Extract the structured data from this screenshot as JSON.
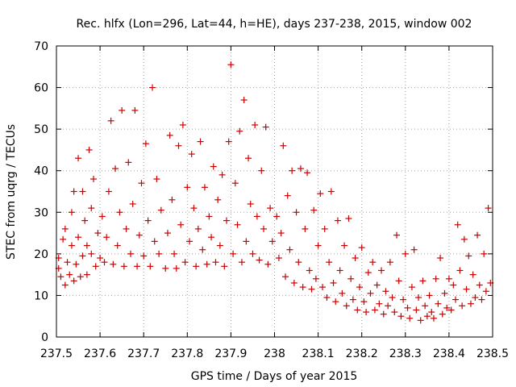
{
  "chart_data": {
    "type": "scatter",
    "title": "Rec. hlfx (Lon=296, Lat=44, h=HE), days 237-238, 2015, window 002",
    "xlabel": "GPS time / Days of year 2015",
    "ylabel": "STEC from uqrg / TECUs",
    "xlim": [
      237.5,
      238.5
    ],
    "ylim": [
      0,
      70
    ],
    "xticks": [
      237.5,
      237.6,
      237.7,
      237.8,
      237.9,
      238.0,
      238.1,
      238.2,
      238.3,
      238.4,
      238.5
    ],
    "xtick_labels": [
      "237.5",
      "237.6",
      "237.7",
      "237.8",
      "237.9",
      "238",
      "238.1",
      "238.2",
      "238.3",
      "238.4",
      "238.5"
    ],
    "yticks": [
      0,
      10,
      20,
      30,
      40,
      50,
      60,
      70
    ],
    "ytick_labels": [
      "0",
      "10",
      "20",
      "30",
      "40",
      "50",
      "60",
      "70"
    ],
    "grid": true,
    "marker": "+",
    "color": "#cc0000",
    "series": [
      {
        "name": "STEC",
        "points": [
          [
            237.505,
            16.5
          ],
          [
            237.505,
            19.0
          ],
          [
            237.51,
            14.5
          ],
          [
            237.515,
            23.5
          ],
          [
            237.52,
            12.5
          ],
          [
            237.52,
            26.0
          ],
          [
            237.525,
            18.0
          ],
          [
            237.53,
            15.0
          ],
          [
            237.535,
            22.0
          ],
          [
            237.535,
            30.0
          ],
          [
            237.54,
            13.5
          ],
          [
            237.54,
            35.0
          ],
          [
            237.545,
            17.5
          ],
          [
            237.55,
            24.0
          ],
          [
            237.55,
            43.0
          ],
          [
            237.555,
            14.5
          ],
          [
            237.56,
            19.5
          ],
          [
            237.56,
            35.0
          ],
          [
            237.565,
            28.0
          ],
          [
            237.57,
            15.0
          ],
          [
            237.57,
            22.0
          ],
          [
            237.575,
            45.0
          ],
          [
            237.58,
            20.0
          ],
          [
            237.58,
            31.0
          ],
          [
            237.585,
            38.0
          ],
          [
            237.59,
            17.0
          ],
          [
            237.595,
            25.0
          ],
          [
            237.6,
            19.0
          ],
          [
            237.605,
            29.0
          ],
          [
            237.61,
            18.0
          ],
          [
            237.615,
            24.0
          ],
          [
            237.62,
            35.0
          ],
          [
            237.625,
            52.0
          ],
          [
            237.63,
            17.5
          ],
          [
            237.635,
            40.5
          ],
          [
            237.64,
            22.0
          ],
          [
            237.645,
            30.0
          ],
          [
            237.65,
            54.5
          ],
          [
            237.655,
            17.0
          ],
          [
            237.66,
            26.0
          ],
          [
            237.665,
            42.0
          ],
          [
            237.67,
            20.0
          ],
          [
            237.675,
            32.0
          ],
          [
            237.68,
            54.5
          ],
          [
            237.685,
            17.0
          ],
          [
            237.69,
            24.5
          ],
          [
            237.695,
            37.0
          ],
          [
            237.7,
            19.5
          ],
          [
            237.705,
            46.5
          ],
          [
            237.71,
            28.0
          ],
          [
            237.715,
            17.0
          ],
          [
            237.72,
            60.0
          ],
          [
            237.725,
            23.0
          ],
          [
            237.73,
            38.0
          ],
          [
            237.735,
            20.0
          ],
          [
            237.74,
            30.5
          ],
          [
            237.75,
            16.5
          ],
          [
            237.755,
            25.0
          ],
          [
            237.76,
            48.5
          ],
          [
            237.765,
            33.0
          ],
          [
            237.77,
            20.0
          ],
          [
            237.775,
            16.5
          ],
          [
            237.78,
            46.0
          ],
          [
            237.785,
            27.0
          ],
          [
            237.79,
            51.0
          ],
          [
            237.795,
            18.0
          ],
          [
            237.8,
            36.0
          ],
          [
            237.805,
            23.0
          ],
          [
            237.81,
            44.0
          ],
          [
            237.815,
            31.0
          ],
          [
            237.82,
            17.0
          ],
          [
            237.825,
            26.0
          ],
          [
            237.83,
            47.0
          ],
          [
            237.835,
            21.0
          ],
          [
            237.84,
            36.0
          ],
          [
            237.845,
            17.5
          ],
          [
            237.85,
            29.0
          ],
          [
            237.855,
            24.0
          ],
          [
            237.86,
            41.0
          ],
          [
            237.865,
            18.0
          ],
          [
            237.87,
            33.0
          ],
          [
            237.875,
            22.0
          ],
          [
            237.88,
            39.0
          ],
          [
            237.885,
            17.0
          ],
          [
            237.89,
            28.0
          ],
          [
            237.895,
            47.0
          ],
          [
            237.9,
            65.5
          ],
          [
            237.905,
            20.0
          ],
          [
            237.91,
            37.0
          ],
          [
            237.915,
            27.0
          ],
          [
            237.92,
            49.5
          ],
          [
            237.925,
            18.0
          ],
          [
            237.93,
            57.0
          ],
          [
            237.935,
            23.0
          ],
          [
            237.94,
            43.0
          ],
          [
            237.945,
            32.0
          ],
          [
            237.95,
            20.0
          ],
          [
            237.955,
            51.0
          ],
          [
            237.96,
            29.0
          ],
          [
            237.965,
            18.5
          ],
          [
            237.97,
            40.0
          ],
          [
            237.975,
            26.0
          ],
          [
            237.98,
            50.5
          ],
          [
            237.985,
            17.5
          ],
          [
            237.99,
            31.0
          ],
          [
            237.995,
            23.0
          ],
          [
            238.005,
            29.0
          ],
          [
            238.01,
            19.0
          ],
          [
            238.015,
            25.0
          ],
          [
            238.02,
            46.0
          ],
          [
            238.025,
            14.5
          ],
          [
            238.03,
            34.0
          ],
          [
            238.035,
            21.0
          ],
          [
            238.04,
            40.0
          ],
          [
            238.045,
            13.0
          ],
          [
            238.05,
            30.0
          ],
          [
            238.055,
            18.0
          ],
          [
            238.06,
            40.5
          ],
          [
            238.065,
            12.0
          ],
          [
            238.07,
            26.0
          ],
          [
            238.075,
            39.5
          ],
          [
            238.08,
            16.0
          ],
          [
            238.085,
            11.5
          ],
          [
            238.09,
            30.5
          ],
          [
            238.095,
            14.0
          ],
          [
            238.1,
            22.0
          ],
          [
            238.105,
            34.5
          ],
          [
            238.11,
            12.0
          ],
          [
            238.115,
            26.0
          ],
          [
            238.12,
            9.5
          ],
          [
            238.125,
            18.0
          ],
          [
            238.13,
            35.0
          ],
          [
            238.135,
            13.0
          ],
          [
            238.14,
            8.5
          ],
          [
            238.145,
            28.0
          ],
          [
            238.15,
            16.0
          ],
          [
            238.155,
            10.5
          ],
          [
            238.16,
            22.0
          ],
          [
            238.165,
            7.5
          ],
          [
            238.17,
            28.5
          ],
          [
            238.175,
            14.0
          ],
          [
            238.18,
            9.0
          ],
          [
            238.185,
            19.0
          ],
          [
            238.19,
            6.5
          ],
          [
            238.195,
            12.0
          ],
          [
            238.2,
            21.5
          ],
          [
            238.205,
            8.5
          ],
          [
            238.21,
            6.0
          ],
          [
            238.215,
            15.5
          ],
          [
            238.22,
            10.5
          ],
          [
            238.225,
            18.0
          ],
          [
            238.23,
            6.5
          ],
          [
            238.235,
            12.5
          ],
          [
            238.24,
            8.0
          ],
          [
            238.245,
            16.0
          ],
          [
            238.25,
            5.5
          ],
          [
            238.255,
            11.0
          ],
          [
            238.26,
            7.5
          ],
          [
            238.265,
            18.0
          ],
          [
            238.27,
            9.5
          ],
          [
            238.275,
            6.0
          ],
          [
            238.28,
            24.5
          ],
          [
            238.285,
            13.5
          ],
          [
            238.29,
            5.0
          ],
          [
            238.295,
            9.0
          ],
          [
            238.3,
            20.0
          ],
          [
            238.305,
            7.0
          ],
          [
            238.31,
            4.5
          ],
          [
            238.315,
            12.0
          ],
          [
            238.32,
            21.0
          ],
          [
            238.325,
            6.5
          ],
          [
            238.33,
            9.5
          ],
          [
            238.335,
            4.0
          ],
          [
            238.34,
            13.5
          ],
          [
            238.345,
            7.5
          ],
          [
            238.35,
            5.0
          ],
          [
            238.355,
            10.0
          ],
          [
            238.36,
            6.0
          ],
          [
            238.365,
            4.5
          ],
          [
            238.37,
            14.0
          ],
          [
            238.375,
            8.0
          ],
          [
            238.38,
            19.0
          ],
          [
            238.385,
            5.5
          ],
          [
            238.39,
            10.5
          ],
          [
            238.395,
            7.0
          ],
          [
            238.4,
            14.0
          ],
          [
            238.405,
            6.5
          ],
          [
            238.41,
            12.5
          ],
          [
            238.415,
            9.0
          ],
          [
            238.42,
            27.0
          ],
          [
            238.425,
            16.0
          ],
          [
            238.43,
            7.5
          ],
          [
            238.435,
            23.5
          ],
          [
            238.44,
            11.5
          ],
          [
            238.445,
            19.5
          ],
          [
            238.45,
            8.0
          ],
          [
            238.455,
            15.0
          ],
          [
            238.46,
            9.5
          ],
          [
            238.465,
            24.5
          ],
          [
            238.47,
            12.5
          ],
          [
            238.475,
            9.0
          ],
          [
            238.48,
            20.0
          ],
          [
            238.485,
            11.0
          ],
          [
            238.49,
            31.0
          ],
          [
            238.495,
            13.0
          ]
        ]
      }
    ]
  }
}
